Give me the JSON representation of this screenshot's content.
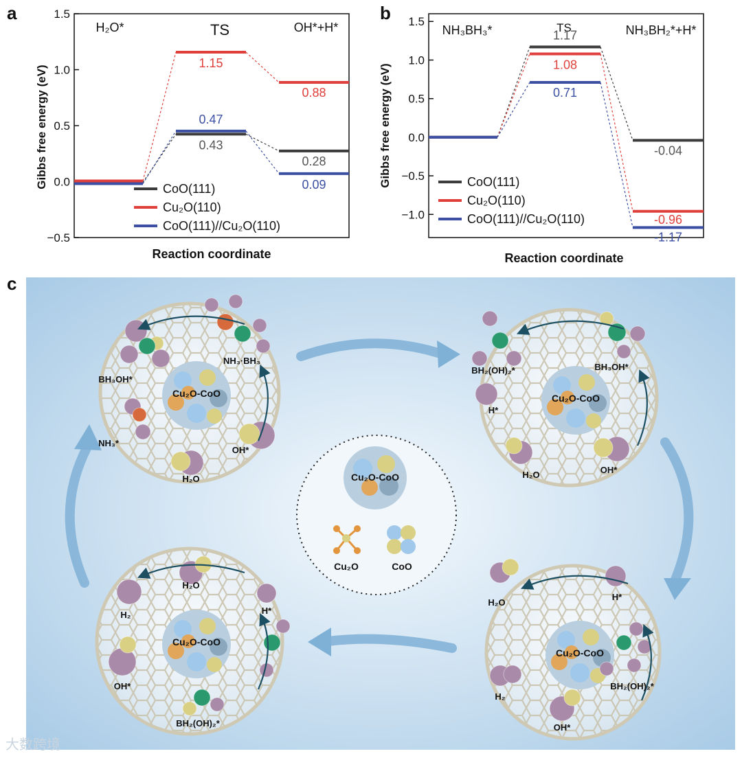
{
  "panel_labels": {
    "a": "a",
    "b": "b",
    "c": "c"
  },
  "chart_data": [
    {
      "type": "line",
      "panel": "a",
      "xlabel": "Reaction coordinate",
      "ylabel": "Gibbs free energy (eV)",
      "ylim": [
        -0.5,
        1.5
      ],
      "yticks": [
        "−0.5",
        "0.0",
        "0.5",
        "1.0",
        "1.5"
      ],
      "stage_labels": {
        "s1": "H₂O*",
        "s2": "TS",
        "s3": "OH*+H*"
      },
      "legend_position": "bottom",
      "series": [
        {
          "name": "CoO(111)",
          "color": "#3c3c3c",
          "values": [
            0.0,
            0.43,
            0.28
          ],
          "labels": [
            "",
            "0.43",
            "0.28"
          ]
        },
        {
          "name": "Cu₂O(110)",
          "color": "#e0403c",
          "values": [
            0.0,
            1.15,
            0.88
          ],
          "labels": [
            "",
            "1.15",
            "0.88"
          ]
        },
        {
          "name": "CoO(111)//Cu₂O(110)",
          "color": "#3b4fa3",
          "values": [
            0.0,
            0.47,
            0.09
          ],
          "labels": [
            "",
            "0.47",
            "0.09"
          ]
        }
      ]
    },
    {
      "type": "line",
      "panel": "b",
      "xlabel": "Reaction coordinate",
      "ylabel": "Gibbs free energy (eV)",
      "ylim": [
        -1.3,
        1.6
      ],
      "yticks": [
        "−1.0",
        "−0.5",
        "0.0",
        "0.5",
        "1.0",
        "1.5"
      ],
      "stage_labels": {
        "s1": "NH₃BH₃*",
        "s2": "TS",
        "s3": "NH₃BH₂*+H*"
      },
      "legend_position": "bottom-left",
      "series": [
        {
          "name": "CoO(111)",
          "color": "#3c3c3c",
          "values": [
            0.0,
            1.17,
            -0.04
          ],
          "labels": [
            "",
            "1.17",
            "-0.04"
          ]
        },
        {
          "name": "Cu₂O(110)",
          "color": "#e0403c",
          "values": [
            0.0,
            1.08,
            -0.96
          ],
          "labels": [
            "",
            "1.08",
            "-0.96"
          ]
        },
        {
          "name": "CoO(111)//Cu₂O(110)",
          "color": "#3b4fa3",
          "values": [
            0.0,
            0.71,
            -1.17
          ],
          "labels": [
            "",
            "0.71",
            "-1.17"
          ]
        }
      ]
    }
  ],
  "schematic": {
    "center": {
      "cluster_label": "Cu₂O-CoO",
      "legend_cu2o": "Cu₂O",
      "legend_coo": "CoO"
    },
    "cage_tl": {
      "cluster_label": "Cu₂O-CoO",
      "labels": [
        "BH₃OH*",
        "NH₃·BH₃",
        "NH₃*",
        "OH*",
        "H₂O"
      ],
      "atom_n": "N",
      "atom_b": "B"
    },
    "cage_tr": {
      "cluster_label": "Cu₂O-CoO",
      "labels": [
        "BH₂(OH)₂*",
        "BH₃OH*",
        "H*",
        "H₂O",
        "OH*"
      ],
      "atom_b": "B",
      "atom_h": "H"
    },
    "cage_br": {
      "cluster_label": "Cu₂O-CoO",
      "labels": [
        "H₂O",
        "H*",
        "H₂",
        "BH₂(OH)₂*",
        "OH*"
      ]
    },
    "cage_bl": {
      "cluster_label": "Cu₂O-CoO",
      "labels": [
        "H₂O",
        "H₂",
        "H*",
        "OH*",
        "BH₂(OH)₂*"
      ],
      "atom_b": "B",
      "atom_h": "H"
    },
    "colors": {
      "background": "#cfe4f3",
      "arrow": "#6aa4d2",
      "atom_h": "#a98aa8",
      "atom_o": "#d9d084",
      "atom_b": "#2a9a6e",
      "atom_n": "#d66a3c",
      "cage": "#d8d3c2"
    }
  },
  "watermark": "大数跨境"
}
